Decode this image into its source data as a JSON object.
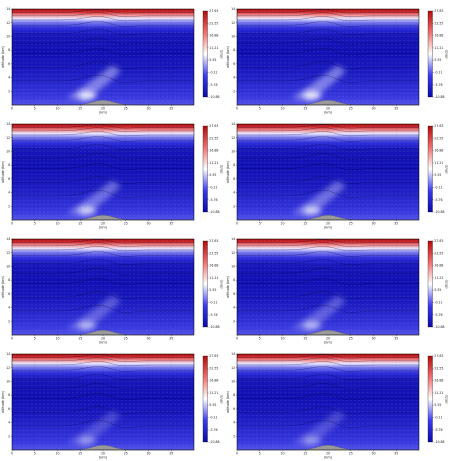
{
  "chart_data": [
    {
      "type": "heatmap",
      "title": "",
      "xlabel": "(km)",
      "ylabel": "altitude (km)",
      "colorbar_label": "(m/s)",
      "xlim": [
        0,
        40
      ],
      "ylim": [
        0,
        14
      ],
      "xticks": [
        "0",
        "5",
        "10",
        "15",
        "20",
        "25",
        "30",
        "35"
      ],
      "yticks": [
        "2",
        "4",
        "6",
        "8",
        "10",
        "12",
        "14"
      ],
      "colorbar_ticks": [
        "27.63",
        "22.55",
        "16.88",
        "11.21",
        "5.55",
        "-0.11",
        "-5.76",
        "-10.88"
      ],
      "colormap": [
        "#0a0aa8",
        "#3a3af0",
        "#ffffff",
        "#f07070",
        "#b40a0a"
      ],
      "mountain_peak_km": 20,
      "mountain_height_km": 0.7,
      "grid": true,
      "vectors": true
    },
    {
      "type": "heatmap",
      "title": "",
      "xlabel": "(km)",
      "ylabel": "altitude (km)",
      "colorbar_label": "(m/s)",
      "xlim": [
        0,
        40
      ],
      "ylim": [
        0,
        14
      ],
      "xticks": [
        "0",
        "5",
        "10",
        "15",
        "20",
        "25",
        "30",
        "35"
      ],
      "yticks": [
        "2",
        "4",
        "6",
        "8",
        "10",
        "12",
        "14"
      ],
      "colorbar_ticks": [
        "27.63",
        "22.55",
        "16.88",
        "11.21",
        "5.55",
        "-0.11",
        "-5.76",
        "-10.88"
      ],
      "colormap": [
        "#0a0aa8",
        "#3a3af0",
        "#ffffff",
        "#f07070",
        "#b40a0a"
      ],
      "mountain_peak_km": 20,
      "mountain_height_km": 0.7,
      "grid": true,
      "vectors": true
    },
    {
      "type": "heatmap",
      "title": "",
      "xlabel": "(km)",
      "ylabel": "altitude (km)",
      "colorbar_label": "(m/s)",
      "xlim": [
        0,
        40
      ],
      "ylim": [
        0,
        14
      ],
      "xticks": [
        "0",
        "5",
        "10",
        "15",
        "20",
        "25",
        "30",
        "35"
      ],
      "yticks": [
        "2",
        "4",
        "6",
        "8",
        "10",
        "12",
        "14"
      ],
      "colorbar_ticks": [
        "27.63",
        "22.55",
        "16.88",
        "11.21",
        "5.55",
        "-0.11",
        "-5.76",
        "-10.88"
      ],
      "colormap": [
        "#0a0aa8",
        "#3a3af0",
        "#ffffff",
        "#f07070",
        "#b40a0a"
      ],
      "mountain_peak_km": 20,
      "mountain_height_km": 0.7,
      "grid": true,
      "vectors": true
    },
    {
      "type": "heatmap",
      "title": "",
      "xlabel": "(km)",
      "ylabel": "altitude (km)",
      "colorbar_label": "(m/s)",
      "xlim": [
        0,
        40
      ],
      "ylim": [
        0,
        14
      ],
      "xticks": [
        "0",
        "5",
        "10",
        "15",
        "20",
        "25",
        "30",
        "35"
      ],
      "yticks": [
        "2",
        "4",
        "6",
        "8",
        "10",
        "12",
        "14"
      ],
      "colorbar_ticks": [
        "27.63",
        "22.55",
        "16.88",
        "11.21",
        "5.55",
        "-0.11",
        "-5.76",
        "-10.88"
      ],
      "colormap": [
        "#0a0aa8",
        "#3a3af0",
        "#ffffff",
        "#f07070",
        "#b40a0a"
      ],
      "mountain_peak_km": 20,
      "mountain_height_km": 0.7,
      "grid": true,
      "vectors": true
    },
    {
      "type": "heatmap",
      "title": "",
      "xlabel": "(km)",
      "ylabel": "altitude (km)",
      "colorbar_label": "(m/s)",
      "xlim": [
        0,
        40
      ],
      "ylim": [
        0,
        14
      ],
      "xticks": [
        "0",
        "5",
        "10",
        "15",
        "20",
        "25",
        "30",
        "35"
      ],
      "yticks": [
        "2",
        "4",
        "6",
        "8",
        "10",
        "12",
        "14"
      ],
      "colorbar_ticks": [
        "27.63",
        "22.55",
        "16.88",
        "11.21",
        "5.55",
        "-0.11",
        "-5.76",
        "-10.88"
      ],
      "colormap": [
        "#0a0aa8",
        "#3a3af0",
        "#ffffff",
        "#f07070",
        "#b40a0a"
      ],
      "mountain_peak_km": 20,
      "mountain_height_km": 0.7,
      "grid": true,
      "vectors": true
    },
    {
      "type": "heatmap",
      "title": "",
      "xlabel": "(km)",
      "ylabel": "altitude (km)",
      "colorbar_label": "(m/s)",
      "xlim": [
        0,
        40
      ],
      "ylim": [
        0,
        14
      ],
      "xticks": [
        "0",
        "5",
        "10",
        "15",
        "20",
        "25",
        "30",
        "35"
      ],
      "yticks": [
        "2",
        "4",
        "6",
        "8",
        "10",
        "12",
        "14"
      ],
      "colorbar_ticks": [
        "27.63",
        "22.55",
        "16.88",
        "11.21",
        "5.55",
        "-0.11",
        "-5.76",
        "-10.88"
      ],
      "colormap": [
        "#0a0aa8",
        "#3a3af0",
        "#ffffff",
        "#f07070",
        "#b40a0a"
      ],
      "mountain_peak_km": 20,
      "mountain_height_km": 0.7,
      "grid": true,
      "vectors": true
    },
    {
      "type": "heatmap",
      "title": "",
      "xlabel": "(km)",
      "ylabel": "altitude (km)",
      "colorbar_label": "(m/s)",
      "xlim": [
        0,
        40
      ],
      "ylim": [
        0,
        14
      ],
      "xticks": [
        "0",
        "5",
        "10",
        "15",
        "20",
        "25",
        "30",
        "35"
      ],
      "yticks": [
        "2",
        "4",
        "6",
        "8",
        "10",
        "12",
        "14"
      ],
      "colorbar_ticks": [
        "27.63",
        "22.55",
        "16.88",
        "11.21",
        "5.55",
        "-0.11",
        "-5.76",
        "-10.88"
      ],
      "colormap": [
        "#0a0aa8",
        "#3a3af0",
        "#ffffff",
        "#f07070",
        "#b40a0a"
      ],
      "mountain_peak_km": 20,
      "mountain_height_km": 0.7,
      "grid": true,
      "vectors": true
    },
    {
      "type": "heatmap",
      "title": "",
      "xlabel": "(km)",
      "ylabel": "altitude (km)",
      "colorbar_label": "(m/s)",
      "xlim": [
        0,
        40
      ],
      "ylim": [
        0,
        14
      ],
      "xticks": [
        "0",
        "5",
        "10",
        "15",
        "20",
        "25",
        "30",
        "35"
      ],
      "yticks": [
        "2",
        "4",
        "6",
        "8",
        "10",
        "12",
        "14"
      ],
      "colorbar_ticks": [
        "27.63",
        "22.55",
        "16.88",
        "11.21",
        "5.55",
        "-0.11",
        "-5.76",
        "-10.88"
      ],
      "colormap": [
        "#0a0aa8",
        "#3a3af0",
        "#ffffff",
        "#f07070",
        "#b40a0a"
      ],
      "mountain_peak_km": 20,
      "mountain_height_km": 0.7,
      "grid": true,
      "vectors": true
    }
  ]
}
